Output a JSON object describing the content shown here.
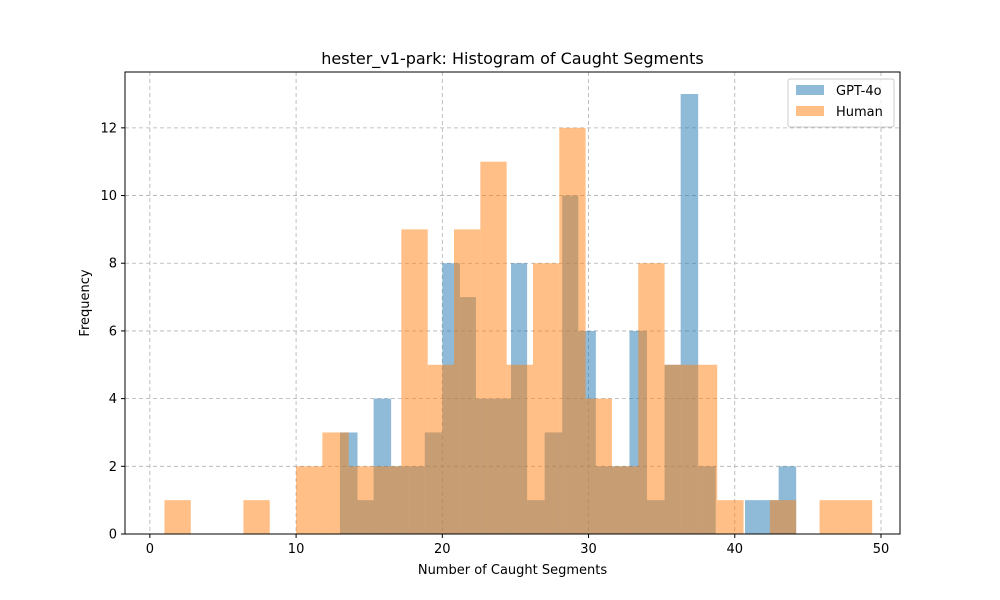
{
  "chart_data": {
    "type": "bar",
    "title": "hester_v1-park: Histogram of Caught Segments",
    "xlabel": "Number of Caught Segments",
    "ylabel": "Frequency",
    "xlim": [
      -1.7,
      51.3
    ],
    "ylim": [
      0,
      13.65
    ],
    "xticks": [
      0,
      10,
      20,
      30,
      40,
      50
    ],
    "yticks": [
      0,
      2,
      4,
      6,
      8,
      10,
      12
    ],
    "grid": true,
    "legend_position": "top-right",
    "overlap_color": "#c89b6e",
    "series": [
      {
        "name": "GPT-4o",
        "color": "#1f77b4",
        "alpha": 0.5,
        "bins": [
          {
            "x0": 13.0,
            "x1": 14.2,
            "value": 3
          },
          {
            "x0": 14.2,
            "x1": 15.3,
            "value": 1
          },
          {
            "x0": 15.3,
            "x1": 16.5,
            "value": 4
          },
          {
            "x0": 16.5,
            "x1": 17.7,
            "value": 2
          },
          {
            "x0": 17.7,
            "x1": 18.8,
            "value": 2
          },
          {
            "x0": 18.8,
            "x1": 20.0,
            "value": 3
          },
          {
            "x0": 20.0,
            "x1": 21.2,
            "value": 8
          },
          {
            "x0": 21.2,
            "x1": 22.3,
            "value": 7
          },
          {
            "x0": 22.3,
            "x1": 23.5,
            "value": 4
          },
          {
            "x0": 23.5,
            "x1": 24.7,
            "value": 4
          },
          {
            "x0": 24.7,
            "x1": 25.8,
            "value": 8
          },
          {
            "x0": 25.8,
            "x1": 27.0,
            "value": 1
          },
          {
            "x0": 27.0,
            "x1": 28.2,
            "value": 3
          },
          {
            "x0": 28.2,
            "x1": 29.3,
            "value": 10
          },
          {
            "x0": 29.3,
            "x1": 30.5,
            "value": 6
          },
          {
            "x0": 30.5,
            "x1": 31.7,
            "value": 2
          },
          {
            "x0": 31.7,
            "x1": 32.8,
            "value": 2
          },
          {
            "x0": 32.8,
            "x1": 34.0,
            "value": 6
          },
          {
            "x0": 34.0,
            "x1": 35.2,
            "value": 1
          },
          {
            "x0": 35.2,
            "x1": 36.3,
            "value": 5
          },
          {
            "x0": 36.3,
            "x1": 37.5,
            "value": 13
          },
          {
            "x0": 37.5,
            "x1": 38.7,
            "value": 2
          },
          {
            "x0": 40.7,
            "x1": 41.8,
            "value": 1
          },
          {
            "x0": 41.8,
            "x1": 43.0,
            "value": 1
          },
          {
            "x0": 43.0,
            "x1": 44.2,
            "value": 2
          }
        ]
      },
      {
        "name": "Human",
        "color": "#ff7f0e",
        "alpha": 0.5,
        "bins": [
          {
            "x0": 1.0,
            "x1": 2.8,
            "value": 1
          },
          {
            "x0": 6.4,
            "x1": 8.2,
            "value": 1
          },
          {
            "x0": 10.0,
            "x1": 11.8,
            "value": 2
          },
          {
            "x0": 11.8,
            "x1": 13.6,
            "value": 3
          },
          {
            "x0": 13.6,
            "x1": 15.4,
            "value": 2
          },
          {
            "x0": 15.4,
            "x1": 17.2,
            "value": 2
          },
          {
            "x0": 17.2,
            "x1": 19.0,
            "value": 9
          },
          {
            "x0": 19.0,
            "x1": 20.8,
            "value": 5
          },
          {
            "x0": 20.8,
            "x1": 22.6,
            "value": 9
          },
          {
            "x0": 22.6,
            "x1": 24.4,
            "value": 11
          },
          {
            "x0": 24.4,
            "x1": 26.2,
            "value": 5
          },
          {
            "x0": 26.2,
            "x1": 28.0,
            "value": 8
          },
          {
            "x0": 28.0,
            "x1": 29.8,
            "value": 12
          },
          {
            "x0": 29.8,
            "x1": 31.6,
            "value": 4
          },
          {
            "x0": 31.6,
            "x1": 33.4,
            "value": 2
          },
          {
            "x0": 33.4,
            "x1": 35.2,
            "value": 8
          },
          {
            "x0": 35.2,
            "x1": 37.0,
            "value": 5
          },
          {
            "x0": 37.0,
            "x1": 38.8,
            "value": 5
          },
          {
            "x0": 38.8,
            "x1": 40.6,
            "value": 1
          },
          {
            "x0": 42.4,
            "x1": 44.2,
            "value": 1
          },
          {
            "x0": 45.8,
            "x1": 47.6,
            "value": 1
          },
          {
            "x0": 47.6,
            "x1": 49.4,
            "value": 1
          }
        ]
      }
    ]
  }
}
